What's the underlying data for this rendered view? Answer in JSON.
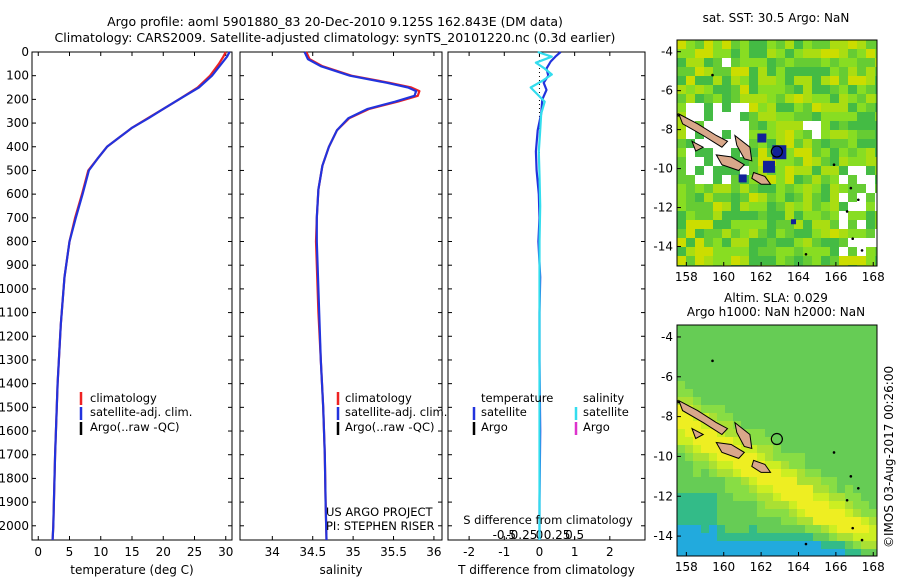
{
  "header": {
    "title_line1": "Argo profile: aoml 5901880_83 20-Dec-2010 9.125S 162.843E (DM data)",
    "title_line2": "Climatology: CARS2009. Satellite-adjusted climatology: synTS_20101220.nc (0.3d earlier)"
  },
  "depth_axis": {
    "ticks": [
      0,
      100,
      200,
      300,
      400,
      500,
      600,
      700,
      800,
      900,
      1000,
      1100,
      1200,
      1300,
      1400,
      1500,
      1600,
      1700,
      1800,
      1900,
      2000
    ],
    "ylim": [
      0,
      2060
    ]
  },
  "colors": {
    "climatology": "#ee2222",
    "satellite": "#2233dd",
    "argo": "#000000",
    "sat_salinity": "#33ddee",
    "argo_salinity": "#dd33cc"
  },
  "chart_data": [
    {
      "id": "temperature",
      "type": "line",
      "xlabel": "temperature (deg C)",
      "xlim": [
        -1,
        31
      ],
      "xticks": [
        0,
        5,
        10,
        15,
        20,
        25,
        30
      ],
      "ylim": [
        0,
        2060
      ],
      "legend": [
        "climatology",
        "satellite-adj. clim.",
        "Argo(..raw -QC)"
      ],
      "series": [
        {
          "name": "climatology",
          "color": "#ee2222",
          "x": [
            30.0,
            29.6,
            28.9,
            27.5,
            25.5,
            22.5,
            20.0,
            17.5,
            15.0,
            13.0,
            11.0,
            9.5,
            8.0,
            7.0,
            5.9,
            5.0,
            4.2,
            3.6,
            3.1,
            2.7,
            2.4,
            2.3
          ],
          "y": [
            0,
            20,
            50,
            100,
            150,
            200,
            240,
            280,
            320,
            360,
            400,
            450,
            500,
            600,
            700,
            800,
            950,
            1150,
            1400,
            1700,
            2000,
            2060
          ]
        },
        {
          "name": "satellite-adj. clim.",
          "color": "#2233dd",
          "x": [
            30.6,
            30.2,
            29.3,
            27.8,
            25.7,
            22.5,
            20.0,
            17.6,
            15.0,
            13.0,
            11.0,
            9.5,
            8.1,
            7.1,
            6.0,
            5.0,
            4.2,
            3.6,
            3.1,
            2.7,
            2.4,
            2.3
          ],
          "y": [
            0,
            20,
            50,
            100,
            150,
            200,
            240,
            280,
            320,
            360,
            400,
            450,
            500,
            600,
            700,
            800,
            950,
            1150,
            1400,
            1700,
            2000,
            2060
          ]
        }
      ]
    },
    {
      "id": "salinity",
      "type": "line",
      "xlabel": "salinity",
      "xlim": [
        33.6,
        36.1
      ],
      "xticks": [
        34,
        34.5,
        35,
        35.5,
        36
      ],
      "ylim": [
        0,
        2060
      ],
      "legend": [
        "climatology",
        "satellite-adj. clim.",
        "Argo(..raw -QC)"
      ],
      "annotation": [
        "US ARGO PROJECT",
        "PI: STEPHEN RISER"
      ],
      "series": [
        {
          "name": "climatology",
          "color": "#ee2222",
          "x": [
            34.42,
            34.46,
            34.62,
            34.98,
            35.45,
            35.72,
            35.82,
            35.8,
            35.55,
            35.2,
            34.95,
            34.8,
            34.7,
            34.62,
            34.57,
            34.55,
            34.54,
            34.55,
            34.57,
            34.6,
            34.63,
            34.65,
            34.66,
            34.67
          ],
          "y": [
            0,
            30,
            60,
            100,
            130,
            150,
            165,
            185,
            210,
            240,
            280,
            330,
            400,
            480,
            580,
            700,
            800,
            900,
            1100,
            1300,
            1500,
            1700,
            1900,
            2060
          ]
        },
        {
          "name": "satellite-adj. clim.",
          "color": "#2233dd",
          "x": [
            34.4,
            34.44,
            34.6,
            34.96,
            35.42,
            35.68,
            35.78,
            35.76,
            35.52,
            35.18,
            34.94,
            34.8,
            34.7,
            34.62,
            34.57,
            34.55,
            34.55,
            34.56,
            34.58,
            34.6,
            34.63,
            34.65,
            34.66,
            34.67
          ],
          "y": [
            0,
            30,
            60,
            100,
            130,
            150,
            165,
            185,
            210,
            240,
            280,
            330,
            400,
            480,
            580,
            700,
            800,
            900,
            1100,
            1300,
            1500,
            1700,
            1900,
            2060
          ]
        }
      ]
    },
    {
      "id": "difference",
      "type": "line",
      "xlabel": "T difference from climatology",
      "top_xlabel": "S difference from climatology",
      "xlim": [
        -2.6,
        3.0
      ],
      "xticks": [
        -2,
        -1,
        0,
        1,
        2
      ],
      "top_ticks": [
        -0.5,
        -0.25,
        0,
        0.25,
        0.5
      ],
      "top_tick_labels": [
        "-0.5",
        "-0.25",
        "0",
        "0.25",
        "0.5"
      ],
      "ylim": [
        0,
        2060
      ],
      "legend_left_title": "temperature",
      "legend_right_title": "salinity",
      "legend_left": [
        "satellite",
        "Argo"
      ],
      "legend_right": [
        "satellite",
        "Argo"
      ],
      "series": [
        {
          "name": "temperature satellite",
          "color": "#2233dd",
          "x": [
            0.6,
            0.45,
            0.32,
            0.2,
            0.25,
            0.12,
            0.2,
            0.08,
            0.05,
            -0.05,
            -0.1,
            -0.08,
            -0.02,
            0.0,
            -0.03,
            0.02,
            0.0,
            0.0,
            0.02,
            0.0,
            0.0
          ],
          "y": [
            0,
            20,
            40,
            70,
            100,
            130,
            160,
            200,
            260,
            330,
            420,
            500,
            600,
            700,
            800,
            950,
            1100,
            1300,
            1600,
            1900,
            2060
          ]
        },
        {
          "name": "salinity satellite",
          "color": "#33ddee",
          "x": [
            -0.05,
            0.35,
            -0.1,
            0.15,
            0.35,
            0.1,
            -0.25,
            -0.05,
            0.15,
            0.05,
            0.02,
            -0.02,
            0.0,
            0.02,
            0.0,
            0.0,
            0.0,
            0.0,
            0.0,
            0.0
          ],
          "y": [
            0,
            20,
            45,
            70,
            95,
            120,
            150,
            180,
            210,
            260,
            330,
            420,
            520,
            650,
            800,
            1000,
            1300,
            1600,
            1900,
            2060
          ]
        }
      ]
    },
    {
      "id": "sst_map",
      "type": "heatmap",
      "title": "sat. SST: 30.5 Argo: NaN",
      "xlim": [
        157.5,
        168.2
      ],
      "ylim": [
        -15,
        -3.4
      ],
      "xticks": [
        158,
        160,
        162,
        164,
        166,
        168
      ],
      "yticks": [
        -4,
        -6,
        -8,
        -10,
        -12,
        -14
      ],
      "marker": {
        "lon": 162.843,
        "lat": -9.125
      }
    },
    {
      "id": "sla_map",
      "type": "heatmap",
      "title": "Altim. SLA: 0.029",
      "subtitle": "Argo h1000: NaN h2000: NaN",
      "xlim": [
        157.5,
        168.2
      ],
      "ylim": [
        -15,
        -3.4
      ],
      "xticks": [
        158,
        160,
        162,
        164,
        166,
        168
      ],
      "yticks": [
        -4,
        -6,
        -8,
        -10,
        -12,
        -14
      ],
      "marker": {
        "lon": 162.843,
        "lat": -9.125
      }
    }
  ],
  "watermark": "©IMOS 03-Aug-2017 00:26:00"
}
